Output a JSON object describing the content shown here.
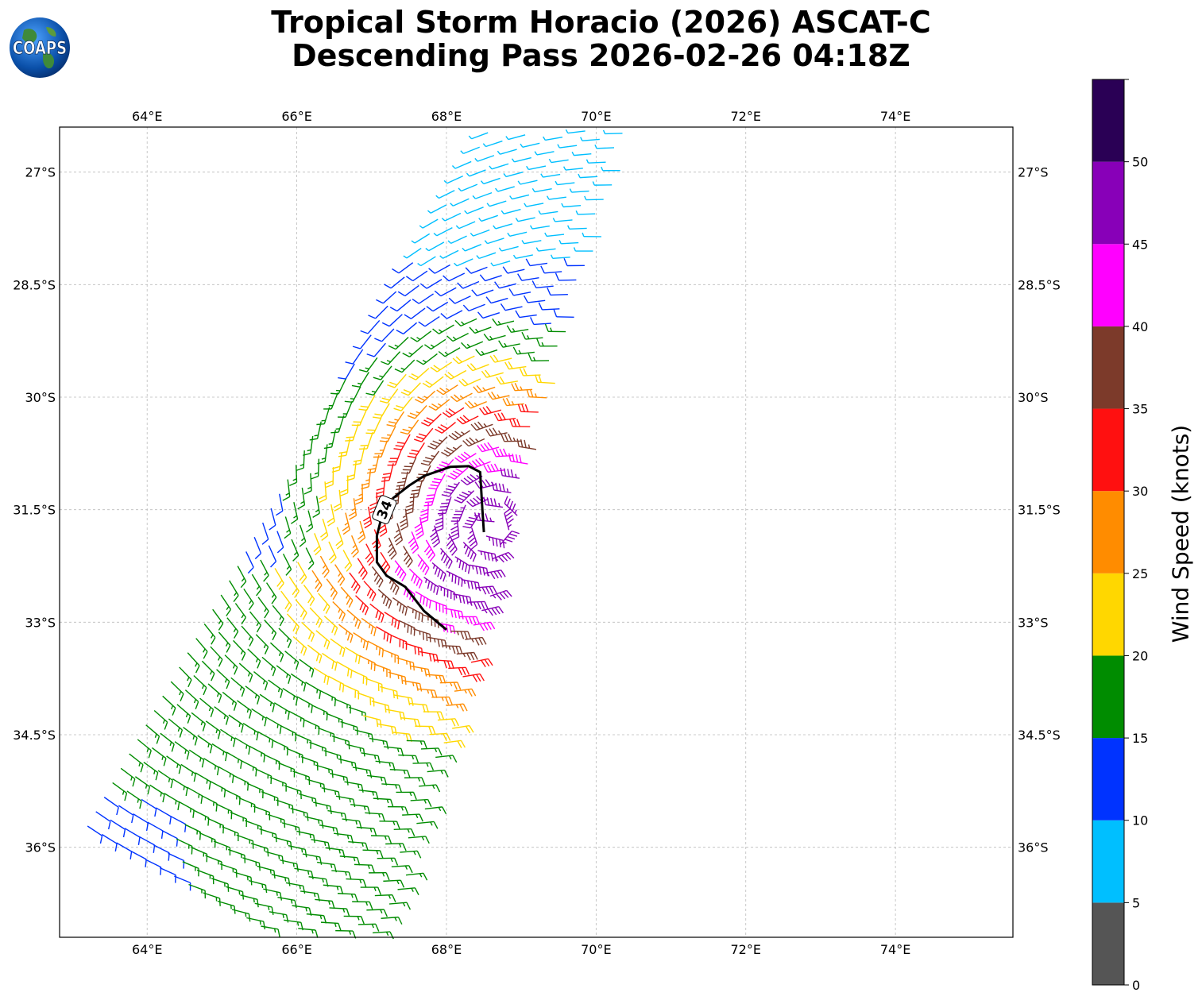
{
  "title": {
    "line1": "Tropical Storm Horacio (2026) ASCAT-C",
    "line2": "Descending Pass 2026-02-26 04:18Z"
  },
  "logo": {
    "text": "COAPS",
    "icon": "globe-logo-icon"
  },
  "map": {
    "lon_range": [
      62.83,
      75.57
    ],
    "lat_range": [
      -26.4,
      -37.2
    ],
    "lon_ticks": [
      {
        "value": 64,
        "label": "64°E"
      },
      {
        "value": 66,
        "label": "66°E"
      },
      {
        "value": 68,
        "label": "68°E"
      },
      {
        "value": 70,
        "label": "70°E"
      },
      {
        "value": 72,
        "label": "72°E"
      },
      {
        "value": 74,
        "label": "74°E"
      }
    ],
    "lat_ticks": [
      {
        "value": -27,
        "label": "27°S"
      },
      {
        "value": -28.5,
        "label": "28.5°S"
      },
      {
        "value": -30,
        "label": "30°S"
      },
      {
        "value": -31.5,
        "label": "31.5°S"
      },
      {
        "value": -33,
        "label": "33°S"
      },
      {
        "value": -34.5,
        "label": "34.5°S"
      },
      {
        "value": -36,
        "label": "36°S"
      }
    ],
    "contour": {
      "label": "34",
      "label_position": [
        67.17,
        -31.5
      ],
      "points": [
        [
          67.28,
          -31.35
        ],
        [
          67.5,
          -31.18
        ],
        [
          67.7,
          -31.05
        ],
        [
          68.05,
          -30.93
        ],
        [
          68.3,
          -30.92
        ],
        [
          68.45,
          -31.0
        ],
        [
          68.48,
          -31.5
        ],
        [
          68.5,
          -31.8
        ]
      ],
      "points_b": [
        [
          67.12,
          -31.65
        ],
        [
          67.07,
          -31.85
        ],
        [
          67.07,
          -32.2
        ],
        [
          67.2,
          -32.38
        ],
        [
          67.45,
          -32.53
        ],
        [
          67.7,
          -32.85
        ],
        [
          68.0,
          -33.1
        ]
      ]
    },
    "center": [
      68.6,
      -31.75
    ]
  },
  "colorbar": {
    "label": "Wind Speed (knots)",
    "bounds": [
      0,
      5,
      10,
      15,
      20,
      25,
      30,
      35,
      40,
      45,
      50,
      55
    ],
    "tick_labels": [
      "0",
      "5",
      "10",
      "15",
      "20",
      "25",
      "30",
      "35",
      "40",
      "45",
      "50"
    ],
    "colors": [
      "#555555",
      "#00bfff",
      "#0033ff",
      "#008c00",
      "#ffd700",
      "#ff8c00",
      "#ff1010",
      "#7c3a2a",
      "#ff00ff",
      "#8800b8",
      "#2a0055"
    ]
  }
}
